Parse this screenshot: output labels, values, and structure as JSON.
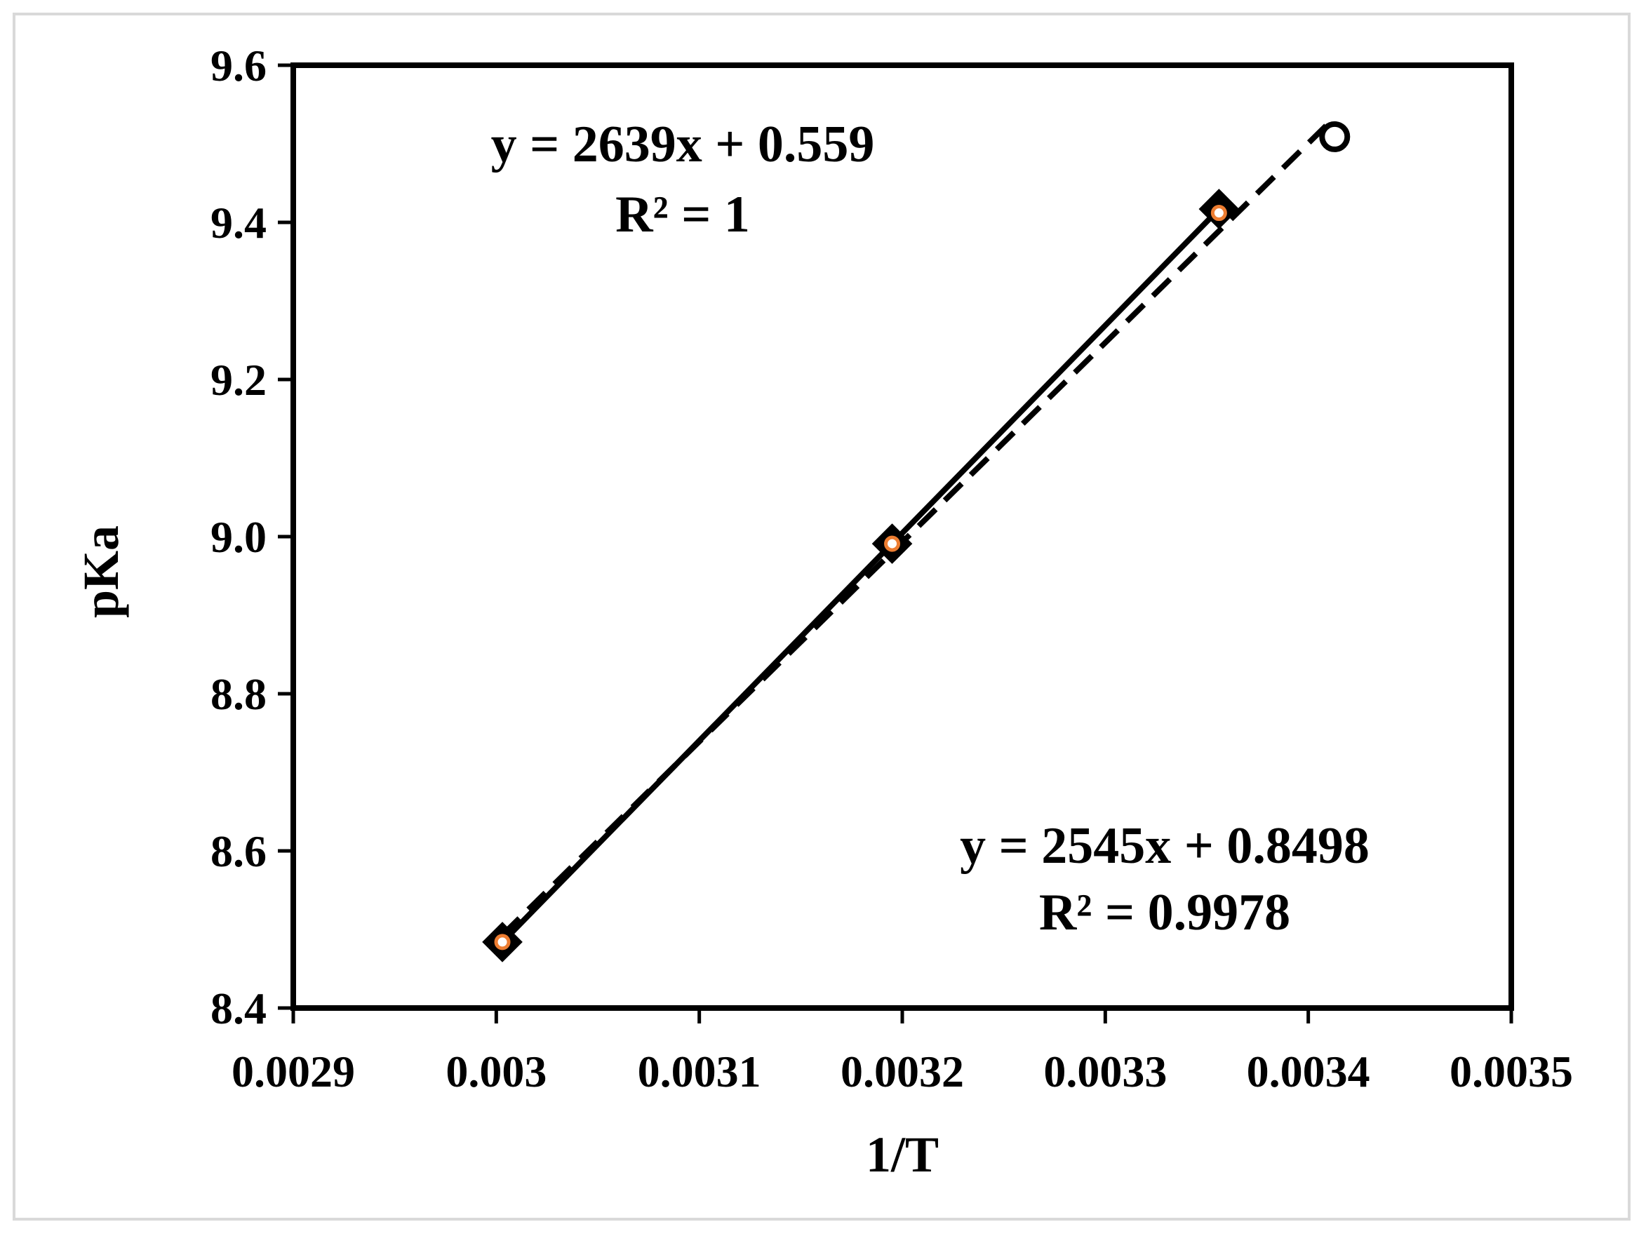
{
  "chart_data": {
    "type": "scatter",
    "title": "",
    "xlabel": "1/T",
    "ylabel": "pKa",
    "xlim": [
      0.0029,
      0.0035
    ],
    "ylim": [
      8.4,
      9.6
    ],
    "x_ticks": [
      0.0029,
      0.003,
      0.0031,
      0.0032,
      0.0033,
      0.0034,
      0.0035
    ],
    "x_tick_labels": [
      "0.0029",
      "0.003",
      "0.0031",
      "0.0032",
      "0.0033",
      "0.0034",
      "0.0035"
    ],
    "y_ticks": [
      8.4,
      8.6,
      8.8,
      9.0,
      9.2,
      9.4,
      9.6
    ],
    "y_tick_labels": [
      "8.4",
      "8.6",
      "8.8",
      "9.0",
      "9.2",
      "9.4",
      "9.6"
    ],
    "grid": false,
    "legend": "none",
    "series": [
      {
        "marker": "diamond",
        "color": "#000000",
        "fill": "#000000",
        "trendline": "solid",
        "x": [
          0.003003,
          0.003195,
          0.003356
        ],
        "y": [
          8.484,
          8.991,
          9.417
        ],
        "equation": "y = 2639x + 0.559",
        "r2": "R² = 1"
      },
      {
        "marker": "circle",
        "color": "#000000",
        "fill": "#ffffff",
        "trendline": "dashed",
        "x": [
          0.003003,
          0.003195,
          0.003356,
          0.003413
        ],
        "y": [
          8.484,
          8.991,
          9.412,
          9.509
        ],
        "equation": "y = 2545x + 0.8498",
        "r2": "R² = 0.9978"
      }
    ],
    "inner_marker_color": "#ED7D31"
  }
}
